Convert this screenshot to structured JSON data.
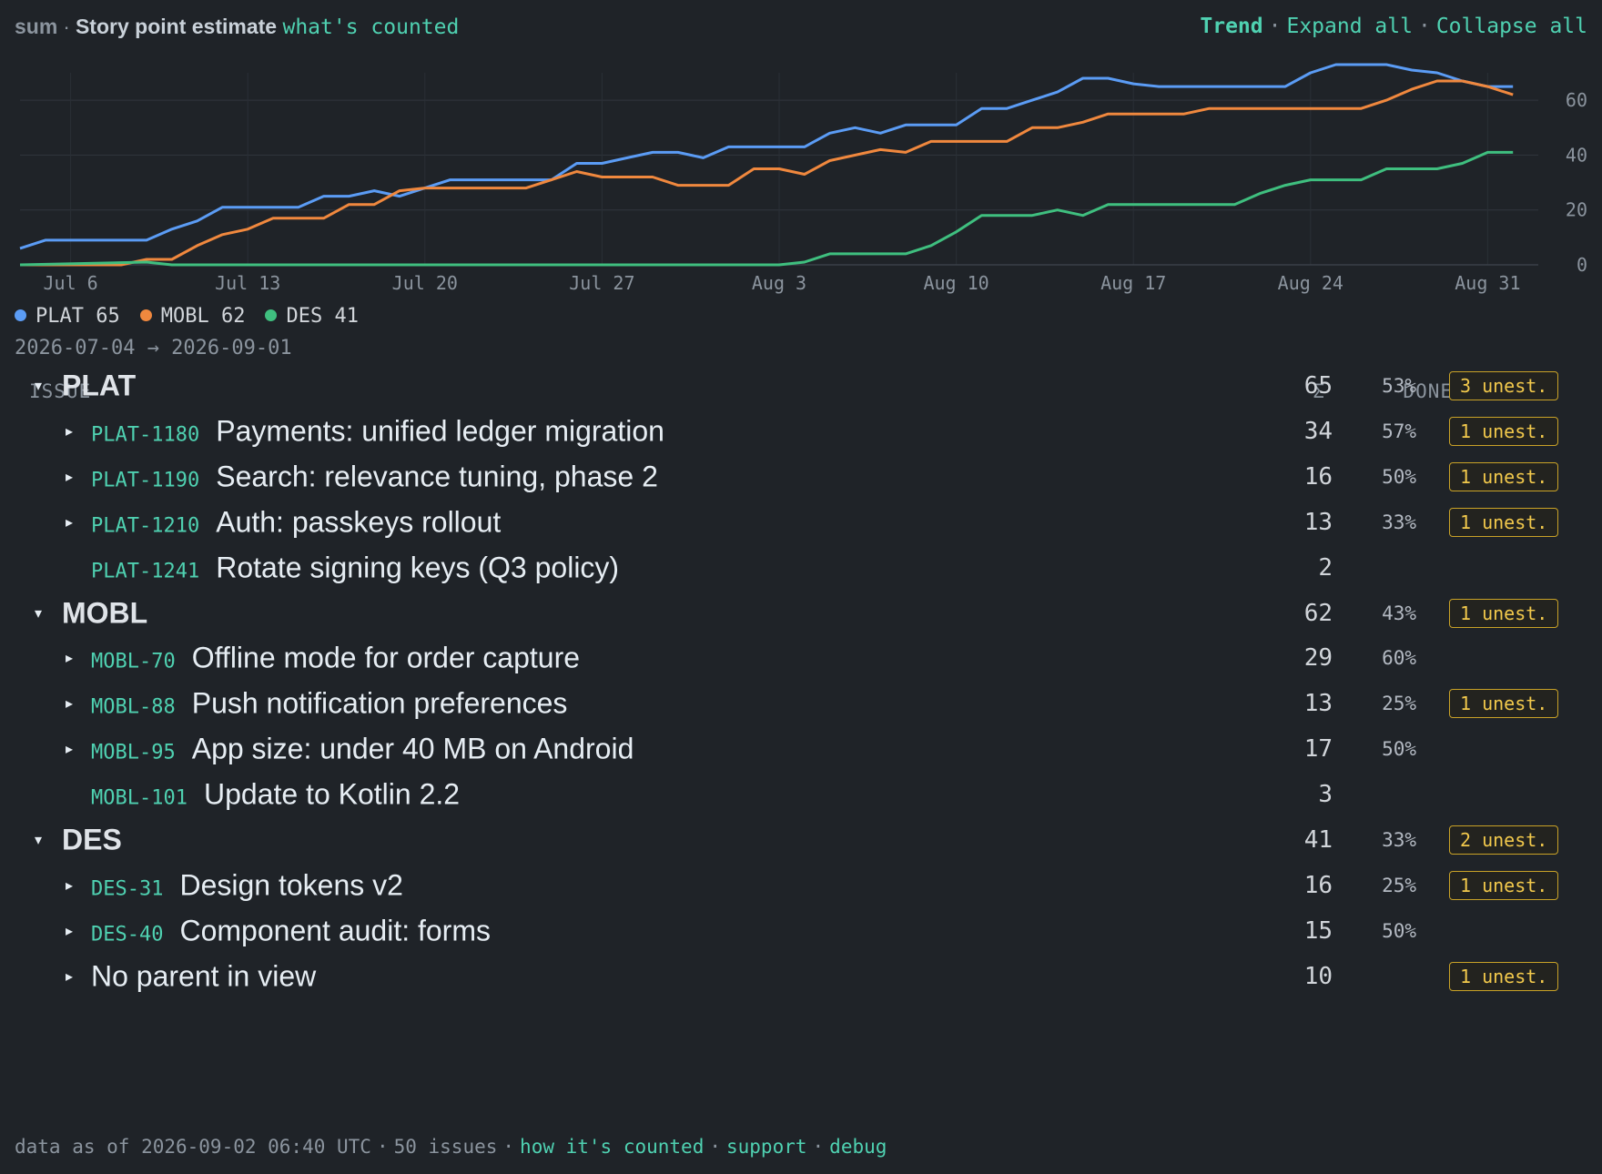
{
  "header": {
    "agg": "sum",
    "field": "Story point estimate",
    "whats_counted": "what's counted",
    "trend": "Trend",
    "expand_all": "Expand all",
    "collapse_all": "Collapse all"
  },
  "chart_data": {
    "type": "line",
    "x_tick_labels": [
      "Jul 6",
      "Jul 13",
      "Jul 20",
      "Jul 27",
      "Aug 3",
      "Aug 10",
      "Aug 17",
      "Aug 24",
      "Aug 31"
    ],
    "x_tick_days": [
      2,
      9,
      16,
      23,
      30,
      37,
      44,
      51,
      58
    ],
    "x_range_days": [
      0,
      60
    ],
    "x_range_dates": [
      "2026-07-04",
      "2026-09-02"
    ],
    "y_ticks": [
      0,
      20,
      40,
      60
    ],
    "ylim": [
      0,
      70
    ],
    "grid": true,
    "series": [
      {
        "name": "PLAT",
        "color": "#5b9cf5",
        "points": [
          [
            0,
            6
          ],
          [
            1,
            9
          ],
          [
            5,
            9
          ],
          [
            6,
            13
          ],
          [
            7,
            16
          ],
          [
            8,
            21
          ],
          [
            11,
            21
          ],
          [
            12,
            25
          ],
          [
            13,
            25
          ],
          [
            14,
            27
          ],
          [
            15,
            25
          ],
          [
            16,
            28
          ],
          [
            17,
            31
          ],
          [
            21,
            31
          ],
          [
            22,
            37
          ],
          [
            23,
            37
          ],
          [
            24,
            39
          ],
          [
            25,
            41
          ],
          [
            26,
            41
          ],
          [
            27,
            39
          ],
          [
            28,
            43
          ],
          [
            31,
            43
          ],
          [
            32,
            48
          ],
          [
            33,
            50
          ],
          [
            34,
            48
          ],
          [
            35,
            51
          ],
          [
            37,
            51
          ],
          [
            38,
            57
          ],
          [
            39,
            57
          ],
          [
            40,
            60
          ],
          [
            41,
            63
          ],
          [
            42,
            68
          ],
          [
            43,
            68
          ],
          [
            44,
            66
          ],
          [
            45,
            65
          ],
          [
            50,
            65
          ],
          [
            51,
            70
          ],
          [
            52,
            73
          ],
          [
            54,
            73
          ],
          [
            55,
            71
          ],
          [
            56,
            70
          ],
          [
            57,
            67
          ],
          [
            58,
            65
          ],
          [
            59,
            65
          ]
        ]
      },
      {
        "name": "MOBL",
        "color": "#f0883e",
        "points": [
          [
            0,
            0
          ],
          [
            4,
            0
          ],
          [
            5,
            2
          ],
          [
            6,
            2
          ],
          [
            7,
            7
          ],
          [
            8,
            11
          ],
          [
            9,
            13
          ],
          [
            10,
            17
          ],
          [
            12,
            17
          ],
          [
            13,
            22
          ],
          [
            14,
            22
          ],
          [
            15,
            27
          ],
          [
            16,
            28
          ],
          [
            20,
            28
          ],
          [
            21,
            31
          ],
          [
            22,
            34
          ],
          [
            23,
            32
          ],
          [
            25,
            32
          ],
          [
            26,
            29
          ],
          [
            28,
            29
          ],
          [
            29,
            35
          ],
          [
            30,
            35
          ],
          [
            31,
            33
          ],
          [
            32,
            38
          ],
          [
            34,
            42
          ],
          [
            35,
            41
          ],
          [
            36,
            45
          ],
          [
            39,
            45
          ],
          [
            40,
            50
          ],
          [
            41,
            50
          ],
          [
            42,
            52
          ],
          [
            43,
            55
          ],
          [
            46,
            55
          ],
          [
            47,
            57
          ],
          [
            53,
            57
          ],
          [
            54,
            60
          ],
          [
            55,
            64
          ],
          [
            56,
            67
          ],
          [
            57,
            67
          ],
          [
            58,
            65
          ],
          [
            59,
            62
          ]
        ]
      },
      {
        "name": "DES",
        "color": "#3fbf7f",
        "points": [
          [
            0,
            0
          ],
          [
            5,
            1
          ],
          [
            6,
            0
          ],
          [
            30,
            0
          ],
          [
            31,
            1
          ],
          [
            32,
            4
          ],
          [
            35,
            4
          ],
          [
            36,
            7
          ],
          [
            37,
            12
          ],
          [
            38,
            18
          ],
          [
            40,
            18
          ],
          [
            41,
            20
          ],
          [
            42,
            18
          ],
          [
            43,
            22
          ],
          [
            48,
            22
          ],
          [
            49,
            26
          ],
          [
            50,
            29
          ],
          [
            51,
            31
          ],
          [
            53,
            31
          ],
          [
            54,
            35
          ],
          [
            56,
            35
          ],
          [
            57,
            37
          ],
          [
            58,
            41
          ],
          [
            59,
            41
          ]
        ]
      }
    ]
  },
  "legend": [
    {
      "name": "PLAT",
      "value": "65",
      "color": "#5b9cf5"
    },
    {
      "name": "MOBL",
      "value": "62",
      "color": "#f0883e"
    },
    {
      "name": "DES",
      "value": "41",
      "color": "#3fbf7f"
    }
  ],
  "date_range": "2026-07-04 → 2026-09-01",
  "table": {
    "headers": {
      "issue": "ISSUE",
      "sum": "Σ",
      "done": "DONE"
    },
    "rows": [
      {
        "kind": "group",
        "caret": "▾",
        "key": "",
        "title": "PLAT",
        "sum": "65",
        "done": "53%",
        "badge": "3 unest."
      },
      {
        "kind": "item",
        "caret": "▸",
        "key": "PLAT-1180",
        "title": "Payments: unified ledger migration",
        "sum": "34",
        "done": "57%",
        "badge": "1 unest."
      },
      {
        "kind": "item",
        "caret": "▸",
        "key": "PLAT-1190",
        "title": "Search: relevance tuning, phase 2",
        "sum": "16",
        "done": "50%",
        "badge": "1 unest."
      },
      {
        "kind": "item",
        "caret": "▸",
        "key": "PLAT-1210",
        "title": "Auth: passkeys rollout",
        "sum": "13",
        "done": "33%",
        "badge": "1 unest."
      },
      {
        "kind": "leaf",
        "caret": "",
        "key": "PLAT-1241",
        "title": "Rotate signing keys (Q3 policy)",
        "sum": "2",
        "done": "",
        "badge": ""
      },
      {
        "kind": "group",
        "caret": "▾",
        "key": "",
        "title": "MOBL",
        "sum": "62",
        "done": "43%",
        "badge": "1 unest."
      },
      {
        "kind": "item",
        "caret": "▸",
        "key": "MOBL-70",
        "title": "Offline mode for order capture",
        "sum": "29",
        "done": "60%",
        "badge": ""
      },
      {
        "kind": "item",
        "caret": "▸",
        "key": "MOBL-88",
        "title": "Push notification preferences",
        "sum": "13",
        "done": "25%",
        "badge": "1 unest."
      },
      {
        "kind": "item",
        "caret": "▸",
        "key": "MOBL-95",
        "title": "App size: under 40 MB on Android",
        "sum": "17",
        "done": "50%",
        "badge": ""
      },
      {
        "kind": "leaf",
        "caret": "",
        "key": "MOBL-101",
        "title": "Update to Kotlin 2.2",
        "sum": "3",
        "done": "",
        "badge": ""
      },
      {
        "kind": "group",
        "caret": "▾",
        "key": "",
        "title": "DES",
        "sum": "41",
        "done": "33%",
        "badge": "2 unest."
      },
      {
        "kind": "item",
        "caret": "▸",
        "key": "DES-31",
        "title": "Design tokens v2",
        "sum": "16",
        "done": "25%",
        "badge": "1 unest."
      },
      {
        "kind": "item",
        "caret": "▸",
        "key": "DES-40",
        "title": "Component audit: forms",
        "sum": "15",
        "done": "50%",
        "badge": ""
      },
      {
        "kind": "orphan",
        "caret": "▸",
        "key": "",
        "title": "No parent in view",
        "sum": "10",
        "done": "",
        "badge": "1 unest."
      }
    ]
  },
  "footer": {
    "asof": "data as of 2026-09-02 06:40 UTC",
    "count": "50 issues",
    "how": "how it's counted",
    "support": "support",
    "debug": "debug"
  }
}
